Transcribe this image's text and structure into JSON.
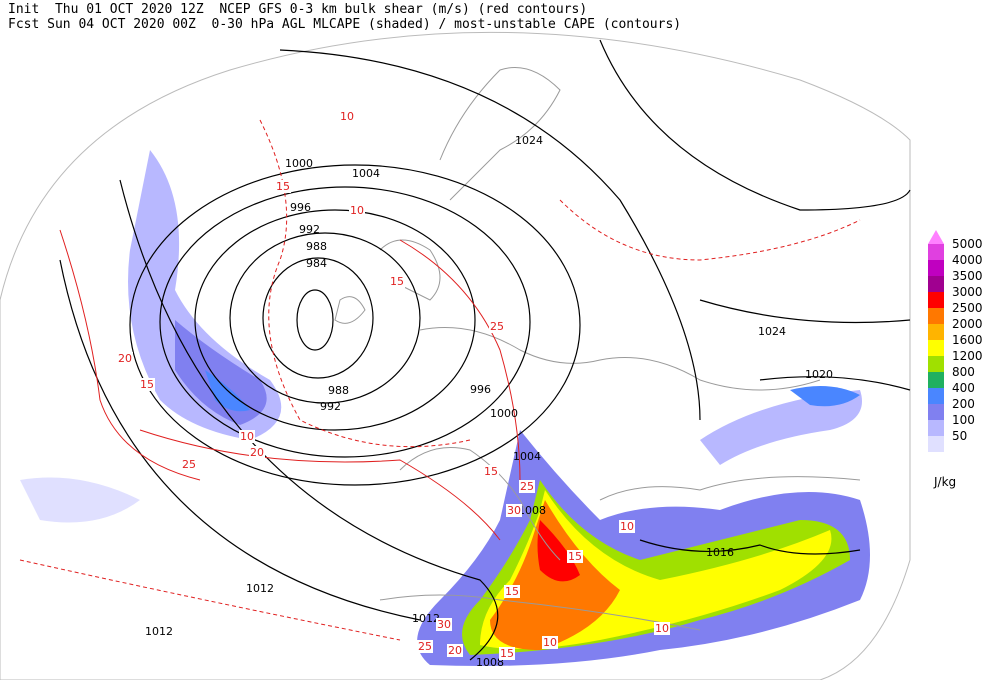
{
  "header": {
    "line1": "Init  Thu 01 OCT 2020 12Z  NCEP GFS 0-3 km bulk shear (m/s) (red contours)",
    "line2": "Fcst Sun 04 OCT 2020 00Z  0-30 hPa AGL MLCAPE (shaded) / most-unstable CAPE (contours)"
  },
  "isobar_labels": [
    "1024",
    "1004",
    "1000",
    "996",
    "992",
    "988",
    "984",
    "1024",
    "1020",
    "988",
    "992",
    "996",
    "1000",
    "1004",
    "1008",
    "1016",
    "1012",
    "1012",
    "1012",
    "1008"
  ],
  "shear_labels": [
    "10",
    "15",
    "10",
    "15",
    "20",
    "25",
    "15",
    "10",
    "20",
    "25",
    "15",
    "25",
    "30",
    "15",
    "15",
    "10",
    "30",
    "25",
    "20",
    "15",
    "10",
    "10"
  ],
  "legend": {
    "overflow_color": "#ff80ff",
    "levels": [
      {
        "label": "5000",
        "color": "#e040e0"
      },
      {
        "label": "4000",
        "color": "#c000c0"
      },
      {
        "label": "3500",
        "color": "#a00090"
      },
      {
        "label": "3000",
        "color": "#ff0000"
      },
      {
        "label": "2500",
        "color": "#ff7800"
      },
      {
        "label": "2000",
        "color": "#ffb400"
      },
      {
        "label": "1600",
        "color": "#ffff00"
      },
      {
        "label": "1200",
        "color": "#a0e000"
      },
      {
        "label": "800",
        "color": "#20b060"
      },
      {
        "label": "400",
        "color": "#4a86ff"
      },
      {
        "label": "200",
        "color": "#8080f0"
      },
      {
        "label": "100",
        "color": "#b8b8ff"
      },
      {
        "label": "50",
        "color": "#e0e0ff"
      }
    ],
    "unit": "J/kg"
  }
}
